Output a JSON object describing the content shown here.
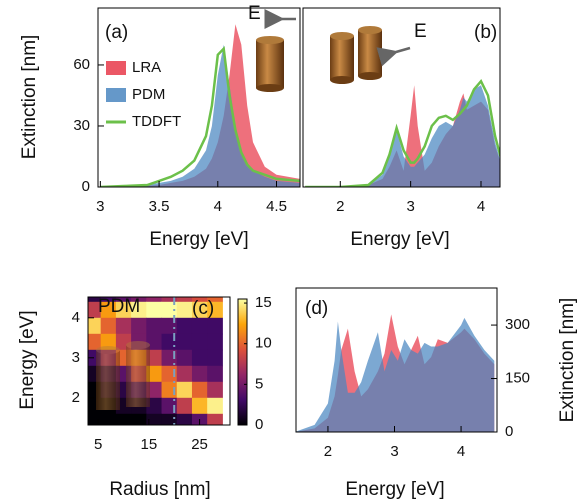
{
  "chart_data": [
    {
      "type": "area",
      "ylabel": "Extinction [nm]",
      "xlabel": "Energy [eV]",
      "annotations": [
        "(a)",
        "E"
      ],
      "xlim": [
        2.98,
        4.7
      ],
      "xticks": [
        3,
        3.5,
        4,
        4.5
      ],
      "ylim": [
        0,
        88
      ],
      "yticks": [
        0,
        30,
        60
      ],
      "x": [
        3.0,
        3.2,
        3.4,
        3.5,
        3.6,
        3.7,
        3.8,
        3.9,
        3.95,
        4.0,
        4.05,
        4.1,
        4.15,
        4.2,
        4.25,
        4.3,
        4.4,
        4.5,
        4.7
      ],
      "series": [
        {
          "name": "LRA",
          "color": "#e8394a",
          "style": "fill",
          "values": [
            0,
            0.3,
            0.6,
            1,
            2,
            3,
            5,
            9,
            14,
            22,
            35,
            55,
            80,
            70,
            40,
            22,
            10,
            6,
            4
          ]
        },
        {
          "name": "PDM",
          "color": "#4a86c0",
          "style": "fill",
          "values": [
            0,
            0.5,
            1,
            2,
            3,
            5,
            9,
            18,
            30,
            55,
            70,
            50,
            30,
            18,
            11,
            8,
            5,
            3,
            2
          ]
        },
        {
          "name": "TDDFT",
          "color": "#6cc04a",
          "style": "line",
          "values": [
            0,
            0.5,
            1,
            3,
            5,
            8,
            13,
            25,
            40,
            65,
            68,
            45,
            28,
            17,
            11,
            8,
            6,
            4,
            3
          ]
        }
      ]
    },
    {
      "type": "area",
      "xlabel": "Energy [eV]",
      "annotations": [
        "(b)",
        "E"
      ],
      "xlim": [
        1.47,
        4.27
      ],
      "xticks": [
        2,
        3,
        4
      ],
      "ylim": [
        0,
        88
      ],
      "x": [
        1.5,
        2.0,
        2.4,
        2.6,
        2.7,
        2.8,
        2.9,
        3.0,
        3.05,
        3.1,
        3.2,
        3.3,
        3.4,
        3.5,
        3.6,
        3.7,
        3.75,
        3.8,
        3.9,
        4.0,
        4.1,
        4.2,
        4.3
      ],
      "series": [
        {
          "color": "#e8394a",
          "style": "fill",
          "values": [
            0,
            0,
            1,
            4,
            10,
            18,
            8,
            35,
            50,
            30,
            8,
            12,
            20,
            26,
            30,
            42,
            46,
            38,
            40,
            42,
            38,
            20,
            10
          ]
        },
        {
          "color": "#4a86c0",
          "style": "fill",
          "values": [
            0,
            0,
            1,
            6,
            15,
            28,
            15,
            10,
            10,
            12,
            16,
            24,
            30,
            32,
            30,
            38,
            44,
            42,
            48,
            50,
            40,
            22,
            10
          ]
        },
        {
          "color": "#6cc04a",
          "style": "line",
          "values": [
            0,
            0,
            1,
            7,
            16,
            29,
            18,
            12,
            12,
            14,
            20,
            30,
            34,
            35,
            33,
            36,
            38,
            40,
            48,
            52,
            45,
            25,
            12
          ]
        }
      ]
    },
    {
      "type": "heatmap",
      "xlabel": "Radius [nm]",
      "ylabel": "Energy [eV]",
      "annotations": [
        "PDM",
        "(c)"
      ],
      "xlim": [
        3,
        31
      ],
      "xticks": [
        5,
        15,
        25
      ],
      "ylim": [
        1.32,
        4.52
      ],
      "yticks": [
        2,
        3,
        4
      ],
      "x": [
        4,
        7,
        10,
        13,
        16,
        19,
        22,
        25,
        28
      ],
      "y": [
        4.6,
        4.2,
        3.8,
        3.4,
        3.0,
        2.6,
        2.2,
        1.8,
        1.4
      ],
      "z": [
        [
          2,
          3,
          4,
          5,
          6,
          7,
          8,
          9,
          10
        ],
        [
          8,
          12,
          14,
          15,
          16,
          16,
          15,
          14,
          13
        ],
        [
          14,
          10,
          7,
          5,
          4,
          4,
          3,
          3,
          3
        ],
        [
          10,
          12,
          8,
          5,
          4,
          3,
          3,
          3,
          3
        ],
        [
          3,
          6,
          10,
          11,
          8,
          5,
          4,
          3,
          3
        ],
        [
          1,
          2,
          4,
          8,
          12,
          10,
          7,
          5,
          4
        ],
        [
          0,
          1,
          2,
          3,
          6,
          11,
          14,
          10,
          7
        ],
        [
          0,
          0,
          1,
          1,
          2,
          4,
          8,
          13,
          15
        ],
        [
          0,
          0,
          0,
          0,
          1,
          1,
          2,
          4,
          8
        ]
      ],
      "clim": [
        0,
        15.5
      ],
      "cticks": [
        0,
        5,
        10,
        15
      ],
      "colormap": [
        "#000004",
        "#420a68",
        "#932667",
        "#dd513a",
        "#fca50a",
        "#fcffa4"
      ],
      "marker_x": 20
    },
    {
      "type": "area",
      "xlabel": "Energy [eV]",
      "ylabel": "Extinction [nm]",
      "annotations": [
        "(d)"
      ],
      "yaxis_side": "right",
      "xlim": [
        1.52,
        4.54
      ],
      "xticks": [
        2,
        3,
        4
      ],
      "ylim": [
        0,
        404
      ],
      "yticks": [
        0,
        150,
        300
      ],
      "x": [
        1.5,
        1.8,
        2.0,
        2.1,
        2.15,
        2.2,
        2.3,
        2.4,
        2.5,
        2.6,
        2.75,
        2.85,
        2.95,
        3.05,
        3.15,
        3.25,
        3.35,
        3.45,
        3.55,
        3.65,
        3.8,
        4.0,
        4.05,
        4.2,
        4.35,
        4.5
      ],
      "series": [
        {
          "color": "#e8394a",
          "style": "fill",
          "values": [
            0,
            10,
            40,
            100,
            160,
            230,
            290,
            170,
            100,
            120,
            170,
            220,
            330,
            240,
            190,
            230,
            270,
            190,
            210,
            260,
            250,
            280,
            290,
            260,
            220,
            190
          ]
        },
        {
          "color": "#4a86c0",
          "style": "fill",
          "values": [
            0,
            20,
            80,
            200,
            310,
            230,
            110,
            110,
            140,
            200,
            280,
            170,
            230,
            200,
            260,
            230,
            220,
            250,
            240,
            240,
            250,
            300,
            320,
            270,
            230,
            200
          ]
        }
      ]
    }
  ]
}
